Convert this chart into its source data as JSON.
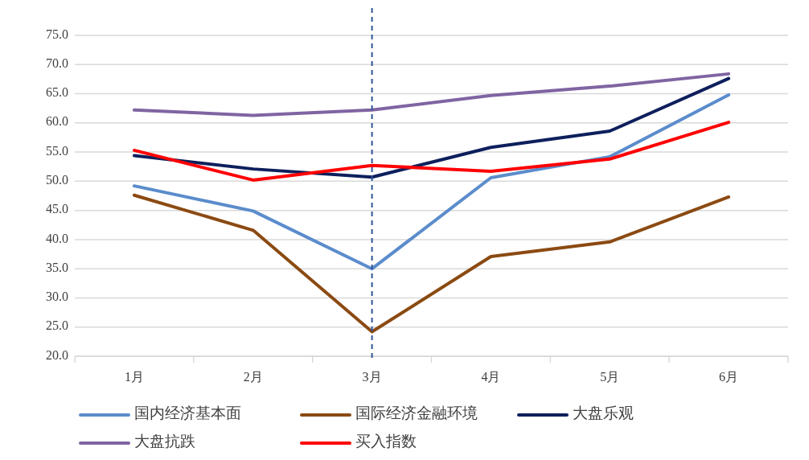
{
  "chart_data": {
    "type": "line",
    "categories": [
      "1月",
      "2月",
      "3月",
      "4月",
      "5月",
      "6月"
    ],
    "series": [
      {
        "name": "国内经济基本面",
        "color": "#5b8ccc",
        "values": [
          49.2,
          44.9,
          35.0,
          50.6,
          54.2,
          64.8
        ]
      },
      {
        "name": "国际经济金融环境",
        "color": "#8b4a12",
        "values": [
          47.6,
          41.6,
          24.2,
          37.1,
          39.6,
          47.3
        ]
      },
      {
        "name": "大盘乐观",
        "color": "#0d1f5c",
        "values": [
          54.4,
          52.1,
          50.7,
          55.8,
          58.6,
          67.6
        ]
      },
      {
        "name": "大盘抗跌",
        "color": "#8064a2",
        "values": [
          62.2,
          61.3,
          62.2,
          64.7,
          66.3,
          68.4
        ]
      },
      {
        "name": "买入指数",
        "color": "#ff0000",
        "values": [
          55.3,
          50.2,
          52.7,
          51.7,
          53.8,
          60.1
        ]
      }
    ],
    "ylim": [
      20,
      75
    ],
    "yticks": [
      {
        "value": 20,
        "label": "20.0"
      },
      {
        "value": 25,
        "label": "25.0"
      },
      {
        "value": 30,
        "label": "30.0"
      },
      {
        "value": 35,
        "label": "35.0"
      },
      {
        "value": 40,
        "label": "40.0"
      },
      {
        "value": 45,
        "label": "45.0"
      },
      {
        "value": 50,
        "label": "50.0"
      },
      {
        "value": 55,
        "label": "55.0"
      },
      {
        "value": 60,
        "label": "60.0"
      },
      {
        "value": 65,
        "label": "65.0"
      },
      {
        "value": 70,
        "label": "70.0"
      },
      {
        "value": 75,
        "label": "75.0"
      }
    ],
    "ref_lines": [
      {
        "axis": "x",
        "value": "3月",
        "color": "#2f5597",
        "line_style": "dashed"
      }
    ],
    "grid": "y",
    "legend": "bottom",
    "marker": "none",
    "line_style": "solid"
  }
}
